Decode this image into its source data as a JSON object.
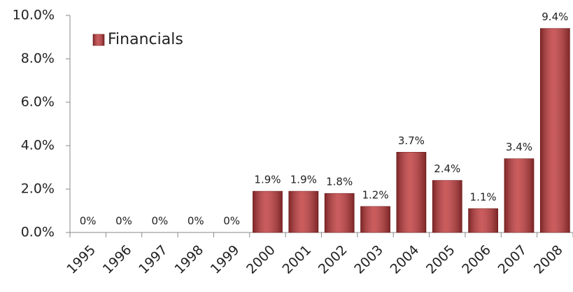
{
  "chart_data": {
    "type": "bar",
    "categories": [
      "1995",
      "1996",
      "1997",
      "1998",
      "1999",
      "2000",
      "2001",
      "2002",
      "2003",
      "2004",
      "2005",
      "2006",
      "2007",
      "2008"
    ],
    "series": [
      {
        "name": "Financials",
        "color": "#c0393b",
        "values": [
          0,
          0,
          0,
          0,
          0,
          1.9,
          1.9,
          1.8,
          1.2,
          3.7,
          2.4,
          1.1,
          3.4,
          9.4
        ],
        "value_labels": [
          "0%",
          "0%",
          "0%",
          "0%",
          "0%",
          "1.9%",
          "1.9%",
          "1.8%",
          "1.2%",
          "3.7%",
          "2.4%",
          "1.1%",
          "3.4%",
          "9.4%"
        ]
      }
    ],
    "ylim": [
      0,
      10
    ],
    "yticks": [
      {
        "value": 0,
        "label": "0.0%"
      },
      {
        "value": 2,
        "label": "2.0%"
      },
      {
        "value": 4,
        "label": "4.0%"
      },
      {
        "value": 6,
        "label": "6.0%"
      },
      {
        "value": 8,
        "label": "8.0%"
      },
      {
        "value": 10,
        "label": "10.0%"
      }
    ],
    "grid": false,
    "legend": "top-left"
  }
}
